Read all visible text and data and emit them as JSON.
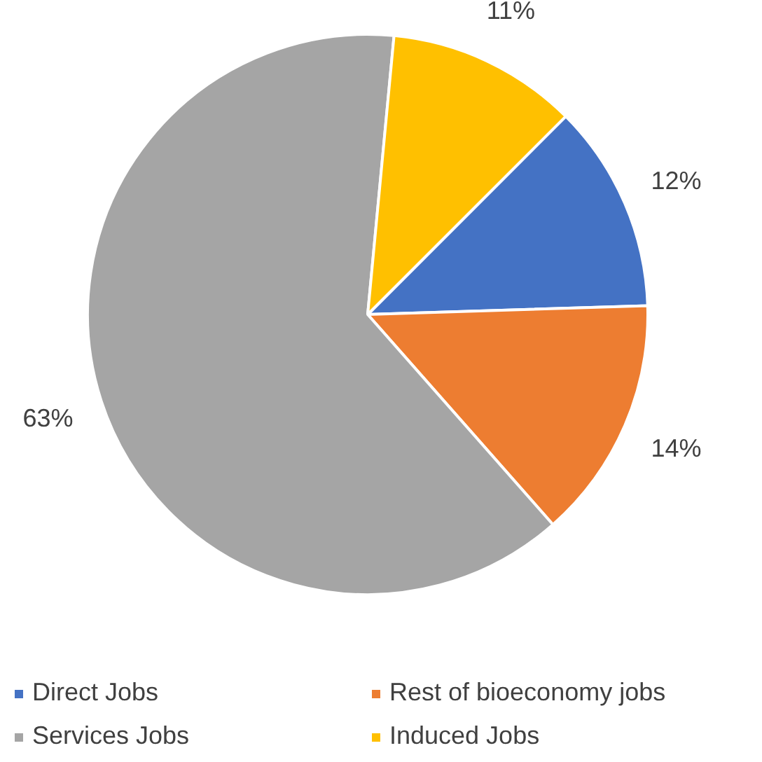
{
  "chart_data": {
    "type": "pie",
    "categories": [
      "Direct Jobs",
      "Rest of bioeconomy jobs",
      "Services Jobs",
      "Induced Jobs"
    ],
    "values": [
      12,
      14,
      63,
      11
    ],
    "colors": [
      "#4472c4",
      "#ed7d31",
      "#a5a5a5",
      "#ffc000"
    ],
    "value_labels": [
      "12%",
      "14%",
      "63%",
      "11%"
    ],
    "legend": "bottom"
  }
}
